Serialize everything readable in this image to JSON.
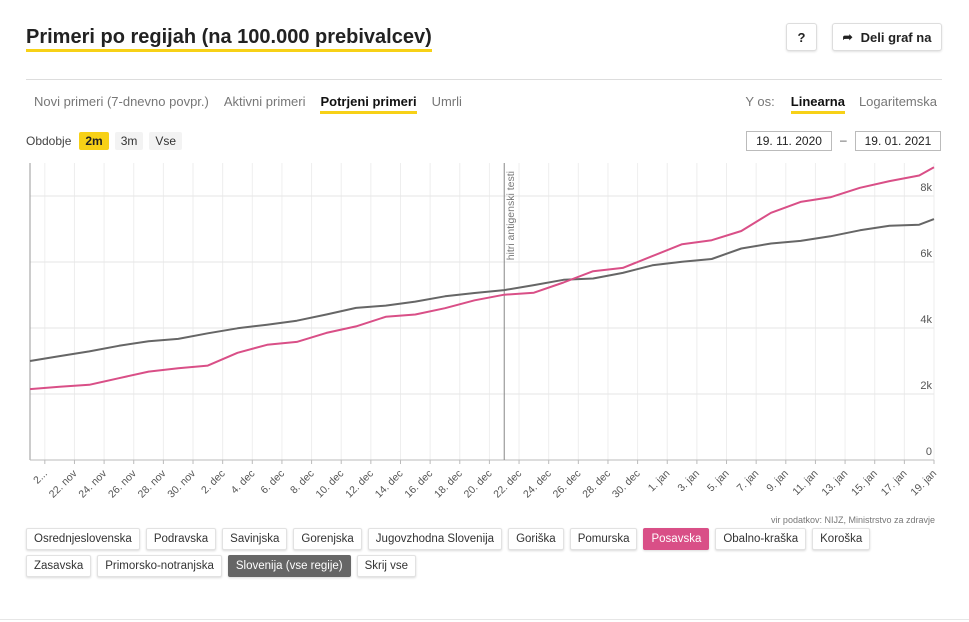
{
  "title": "Primeri po regijah (na 100.000 prebivalcev)",
  "header": {
    "help_label": "?",
    "share_label": "Deli graf na"
  },
  "tabs": [
    {
      "label": "Novi primeri (7-dnevno povpr.)",
      "active": false
    },
    {
      "label": "Aktivni primeri",
      "active": false
    },
    {
      "label": "Potrjeni primeri",
      "active": true
    },
    {
      "label": "Umrli",
      "active": false
    }
  ],
  "yaxis": {
    "label": "Y os:",
    "options": [
      {
        "label": "Linearna",
        "active": true
      },
      {
        "label": "Logaritemska",
        "active": false
      }
    ]
  },
  "period": {
    "label": "Obdobje",
    "options": [
      {
        "label": "2m",
        "active": true
      },
      {
        "label": "3m",
        "active": false
      },
      {
        "label": "Vse",
        "active": false
      }
    ]
  },
  "date_from": "19. 11. 2020",
  "date_sep": "–",
  "date_to": "19. 01. 2021",
  "source": "vir podatkov: NIJZ, Ministrstvo za zdravje",
  "regions": [
    {
      "label": "Osrednjeslovenska",
      "state": "normal"
    },
    {
      "label": "Podravska",
      "state": "normal"
    },
    {
      "label": "Savinjska",
      "state": "normal"
    },
    {
      "label": "Gorenjska",
      "state": "normal"
    },
    {
      "label": "Jugovzhodna Slovenija",
      "state": "normal"
    },
    {
      "label": "Goriška",
      "state": "normal"
    },
    {
      "label": "Pomurska",
      "state": "normal"
    },
    {
      "label": "Posavska",
      "state": "pink"
    },
    {
      "label": "Obalno-kraška",
      "state": "normal"
    },
    {
      "label": "Koroška",
      "state": "normal"
    },
    {
      "label": "Zasavska",
      "state": "normal"
    },
    {
      "label": "Primorsko-notranjska",
      "state": "normal"
    },
    {
      "label": "Slovenija (vse regije)",
      "state": "grey"
    },
    {
      "label": "Skrij vse",
      "state": "normal"
    }
  ],
  "colors": {
    "accent": "#f7d117",
    "posavska": "#d94f87",
    "slovenija": "#666666",
    "grid": "#eeeeee"
  },
  "chart_data": {
    "type": "line",
    "x_start": "2020-11-19",
    "x_tick_labels": [
      "2...",
      "22. nov",
      "24. nov",
      "26. nov",
      "28. nov",
      "30. nov",
      "2. dec",
      "4. dec",
      "6. dec",
      "8. dec",
      "10. dec",
      "12. dec",
      "14. dec",
      "16. dec",
      "18. dec",
      "20. dec",
      "22. dec",
      "24. dec",
      "26. dec",
      "28. dec",
      "30. dec",
      "1. jan",
      "3. jan",
      "5. jan",
      "7. jan",
      "9. jan",
      "11. jan",
      "13. jan",
      "15. jan",
      "17. jan",
      "19. jan"
    ],
    "y_ticks": [
      0,
      2000,
      4000,
      6000,
      8000
    ],
    "y_tick_labels": [
      "0",
      "2k",
      "4k",
      "6k",
      "8k"
    ],
    "ylim": [
      0,
      9000
    ],
    "annotation": {
      "x": "2020-12-21",
      "label": "hitri antigenski testi"
    },
    "series": [
      {
        "name": "Posavska",
        "color": "#d94f87",
        "x": [
          "2020-11-19",
          "2020-11-21",
          "2020-11-23",
          "2020-11-25",
          "2020-11-27",
          "2020-11-29",
          "2020-12-01",
          "2020-12-03",
          "2020-12-05",
          "2020-12-07",
          "2020-12-09",
          "2020-12-11",
          "2020-12-13",
          "2020-12-15",
          "2020-12-17",
          "2020-12-19",
          "2020-12-21",
          "2020-12-23",
          "2020-12-25",
          "2020-12-27",
          "2020-12-29",
          "2020-12-31",
          "2021-01-02",
          "2021-01-04",
          "2021-01-06",
          "2021-01-08",
          "2021-01-10",
          "2021-01-12",
          "2021-01-14",
          "2021-01-16",
          "2021-01-18",
          "2021-01-19"
        ],
        "values": [
          2150,
          2220,
          2280,
          2480,
          2680,
          2780,
          2860,
          3250,
          3490,
          3580,
          3850,
          4050,
          4340,
          4410,
          4600,
          4840,
          5010,
          5070,
          5380,
          5720,
          5820,
          6180,
          6540,
          6660,
          6940,
          7490,
          7820,
          7960,
          8250,
          8450,
          8620,
          8870
        ]
      },
      {
        "name": "Slovenija (vse regije)",
        "color": "#666666",
        "x": [
          "2020-11-19",
          "2020-11-21",
          "2020-11-23",
          "2020-11-25",
          "2020-11-27",
          "2020-11-29",
          "2020-12-01",
          "2020-12-03",
          "2020-12-05",
          "2020-12-07",
          "2020-12-09",
          "2020-12-11",
          "2020-12-13",
          "2020-12-15",
          "2020-12-17",
          "2020-12-19",
          "2020-12-21",
          "2020-12-23",
          "2020-12-25",
          "2020-12-27",
          "2020-12-29",
          "2020-12-31",
          "2021-01-02",
          "2021-01-04",
          "2021-01-06",
          "2021-01-08",
          "2021-01-10",
          "2021-01-12",
          "2021-01-14",
          "2021-01-16",
          "2021-01-18",
          "2021-01-19"
        ],
        "values": [
          3000,
          3150,
          3290,
          3460,
          3600,
          3670,
          3840,
          3990,
          4100,
          4220,
          4410,
          4610,
          4680,
          4800,
          4960,
          5060,
          5150,
          5300,
          5460,
          5500,
          5670,
          5900,
          6010,
          6090,
          6410,
          6560,
          6640,
          6780,
          6960,
          7100,
          7130,
          7300
        ]
      }
    ]
  }
}
